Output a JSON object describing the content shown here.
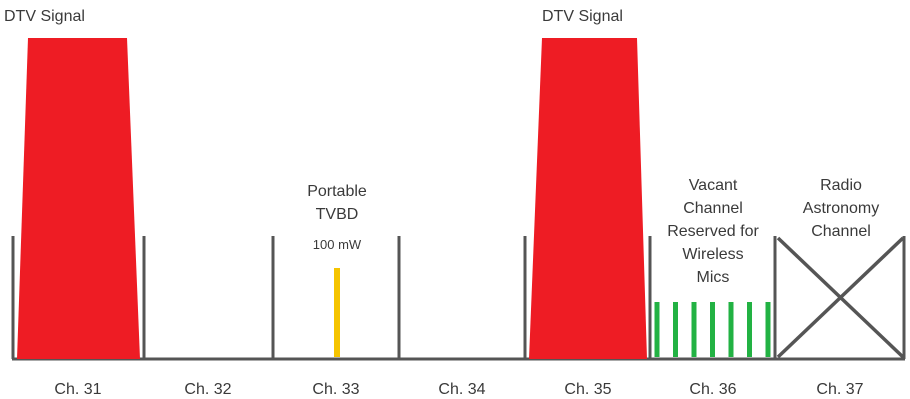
{
  "title": "",
  "channels": [
    "Ch. 31",
    "Ch. 32",
    "Ch. 33",
    "Ch. 34",
    "Ch. 35",
    "Ch. 36",
    "Ch. 37"
  ],
  "labels": {
    "dtv_signal_1": "DTV Signal",
    "dtv_signal_2": "DTV Signal",
    "portable_tvbd": [
      "Portable",
      "TVBD"
    ],
    "tvbd_power": "100 mW",
    "vacant_channel": [
      "Vacant",
      "Channel",
      "Reserved for",
      "Wireless",
      "Mics"
    ],
    "radio_astronomy": [
      "Radio",
      "Astronomy",
      "Channel"
    ]
  },
  "colors": {
    "dtv_signal": "#ee1c24",
    "tvbd": "#f5c400",
    "wireless_mics": "#22b243",
    "lines": "#555555",
    "text": "#3a3a3a"
  },
  "wireless_mic_count": 7
}
